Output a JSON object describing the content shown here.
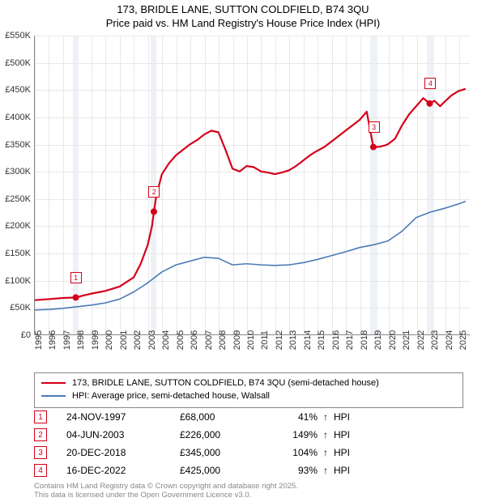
{
  "title": {
    "line1": "173, BRIDLE LANE, SUTTON COLDFIELD, B74 3QU",
    "line2": "Price paid vs. HM Land Registry's House Price Index (HPI)"
  },
  "chart": {
    "type": "line",
    "background_color": "#ffffff",
    "grid_color": "#e8e8e8",
    "axis_color": "#888888",
    "ylim": [
      0,
      550000
    ],
    "ytick_step": 50000,
    "yticks": [
      "£0",
      "£50K",
      "£100K",
      "£150K",
      "£200K",
      "£250K",
      "£300K",
      "£350K",
      "£400K",
      "£450K",
      "£500K",
      "£550K"
    ],
    "xlim": [
      1995,
      2025.8
    ],
    "xticks": [
      1995,
      1996,
      1997,
      1998,
      1999,
      2000,
      2001,
      2002,
      2003,
      2004,
      2005,
      2006,
      2007,
      2008,
      2009,
      2010,
      2011,
      2012,
      2013,
      2014,
      2015,
      2016,
      2017,
      2018,
      2019,
      2020,
      2021,
      2022,
      2023,
      2024,
      2025
    ],
    "vbands": [
      {
        "from": 1997.7,
        "to": 1998.1
      },
      {
        "from": 2003.2,
        "to": 2003.6
      },
      {
        "from": 2018.7,
        "to": 2019.2
      },
      {
        "from": 2022.7,
        "to": 2023.2
      }
    ],
    "series": [
      {
        "name": "173, BRIDLE LANE, SUTTON COLDFIELD, B74 3QU (semi-detached house)",
        "color": "#d4001a",
        "width": 2.2,
        "points": [
          [
            1995,
            63000
          ],
          [
            1996,
            65000
          ],
          [
            1997,
            67000
          ],
          [
            1997.9,
            68000
          ],
          [
            1998.5,
            72000
          ],
          [
            1999,
            75000
          ],
          [
            2000,
            80000
          ],
          [
            2001,
            88000
          ],
          [
            2002,
            105000
          ],
          [
            2002.5,
            130000
          ],
          [
            2003,
            165000
          ],
          [
            2003.3,
            200000
          ],
          [
            2003.43,
            226000
          ],
          [
            2003.6,
            255000
          ],
          [
            2004,
            295000
          ],
          [
            2004.5,
            315000
          ],
          [
            2005,
            330000
          ],
          [
            2005.5,
            340000
          ],
          [
            2006,
            350000
          ],
          [
            2006.5,
            358000
          ],
          [
            2007,
            368000
          ],
          [
            2007.5,
            375000
          ],
          [
            2008,
            372000
          ],
          [
            2008.5,
            340000
          ],
          [
            2009,
            305000
          ],
          [
            2009.5,
            300000
          ],
          [
            2010,
            310000
          ],
          [
            2010.5,
            308000
          ],
          [
            2011,
            300000
          ],
          [
            2011.5,
            298000
          ],
          [
            2012,
            295000
          ],
          [
            2012.5,
            298000
          ],
          [
            2013,
            302000
          ],
          [
            2013.5,
            310000
          ],
          [
            2014,
            320000
          ],
          [
            2014.5,
            330000
          ],
          [
            2015,
            338000
          ],
          [
            2015.5,
            345000
          ],
          [
            2016,
            355000
          ],
          [
            2016.5,
            365000
          ],
          [
            2017,
            375000
          ],
          [
            2017.5,
            385000
          ],
          [
            2018,
            395000
          ],
          [
            2018.5,
            410000
          ],
          [
            2018.97,
            345000
          ],
          [
            2019.3,
            345000
          ],
          [
            2019.8,
            348000
          ],
          [
            2020,
            350000
          ],
          [
            2020.5,
            360000
          ],
          [
            2021,
            385000
          ],
          [
            2021.5,
            405000
          ],
          [
            2022,
            420000
          ],
          [
            2022.5,
            435000
          ],
          [
            2022.96,
            425000
          ],
          [
            2023.3,
            430000
          ],
          [
            2023.7,
            420000
          ],
          [
            2024,
            428000
          ],
          [
            2024.5,
            440000
          ],
          [
            2025,
            448000
          ],
          [
            2025.5,
            452000
          ]
        ],
        "sale_markers": [
          {
            "num": "1",
            "x": 1997.9,
            "y": 68000
          },
          {
            "num": "2",
            "x": 2003.43,
            "y": 226000
          },
          {
            "num": "3",
            "x": 2018.97,
            "y": 345000
          },
          {
            "num": "4",
            "x": 2022.96,
            "y": 425000
          }
        ]
      },
      {
        "name": "HPI: Average price, semi-detached house, Walsall",
        "color": "#4a7bb5",
        "width": 1.6,
        "points": [
          [
            1995,
            45000
          ],
          [
            1996,
            46000
          ],
          [
            1997,
            48000
          ],
          [
            1998,
            51000
          ],
          [
            1999,
            54000
          ],
          [
            2000,
            58000
          ],
          [
            2001,
            65000
          ],
          [
            2002,
            78000
          ],
          [
            2003,
            95000
          ],
          [
            2004,
            115000
          ],
          [
            2005,
            128000
          ],
          [
            2006,
            135000
          ],
          [
            2007,
            142000
          ],
          [
            2008,
            140000
          ],
          [
            2009,
            128000
          ],
          [
            2010,
            130000
          ],
          [
            2011,
            128000
          ],
          [
            2012,
            127000
          ],
          [
            2013,
            128000
          ],
          [
            2014,
            132000
          ],
          [
            2015,
            138000
          ],
          [
            2016,
            145000
          ],
          [
            2017,
            152000
          ],
          [
            2018,
            160000
          ],
          [
            2019,
            165000
          ],
          [
            2020,
            172000
          ],
          [
            2021,
            190000
          ],
          [
            2022,
            215000
          ],
          [
            2023,
            225000
          ],
          [
            2024,
            232000
          ],
          [
            2025,
            240000
          ],
          [
            2025.5,
            245000
          ]
        ]
      }
    ]
  },
  "legend": {
    "items": [
      {
        "color": "#d4001a",
        "label": "173, BRIDLE LANE, SUTTON COLDFIELD, B74 3QU (semi-detached house)"
      },
      {
        "color": "#4a7bb5",
        "label": "HPI: Average price, semi-detached house, Walsall"
      }
    ]
  },
  "sales": [
    {
      "num": "1",
      "color": "#d4001a",
      "date": "24-NOV-1997",
      "price": "£68,000",
      "pct": "41%",
      "arrow": "↑",
      "suffix": "HPI"
    },
    {
      "num": "2",
      "color": "#d4001a",
      "date": "04-JUN-2003",
      "price": "£226,000",
      "pct": "149%",
      "arrow": "↑",
      "suffix": "HPI"
    },
    {
      "num": "3",
      "color": "#d4001a",
      "date": "20-DEC-2018",
      "price": "£345,000",
      "pct": "104%",
      "arrow": "↑",
      "suffix": "HPI"
    },
    {
      "num": "4",
      "color": "#d4001a",
      "date": "16-DEC-2022",
      "price": "£425,000",
      "pct": "93%",
      "arrow": "↑",
      "suffix": "HPI"
    }
  ],
  "footer": {
    "line1": "Contains HM Land Registry data © Crown copyright and database right 2025.",
    "line2": "This data is licensed under the Open Government Licence v3.0."
  }
}
